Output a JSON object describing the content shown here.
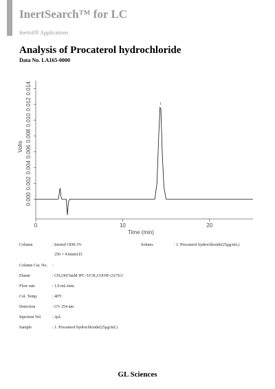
{
  "header": {
    "brand": "InertSearch™ for LC",
    "subtitle": "Inertsil® Applications"
  },
  "title": "Analysis of Procaterol hydrochloride",
  "data_no": "Data No. LA165-0000",
  "chromatogram": {
    "y_label": "Volts",
    "x_label": "Time (min)",
    "peak_label": "1",
    "xlim": [
      0,
      25
    ],
    "ylim": [
      -0.0025,
      0.015
    ],
    "xticks": [
      0,
      10,
      20
    ],
    "yticks": [
      {
        "value": 0,
        "label": "0.000"
      },
      {
        "value": 0.002,
        "label": "0.002"
      },
      {
        "value": 0.004,
        "label": "0.004"
      },
      {
        "value": 0.006,
        "label": "0.006"
      },
      {
        "value": 0.008,
        "label": "0.008"
      },
      {
        "value": 0.01,
        "label": "0.010"
      },
      {
        "value": 0.012,
        "label": "0.012"
      },
      {
        "value": 0.014,
        "label": "0.014"
      }
    ],
    "peak_x": 14.35,
    "trace": {
      "x": [
        0,
        2.6,
        2.72,
        2.8,
        2.9,
        3.0,
        3.5,
        3.58,
        3.65,
        3.75,
        3.9,
        13.7,
        13.95,
        14.15,
        14.3,
        14.4,
        14.55,
        14.75,
        15.0,
        25
      ],
      "y": [
        0,
        0,
        0.0008,
        0.0014,
        0.0004,
        0,
        0,
        -0.0012,
        -0.002,
        -0.0004,
        0,
        0,
        0.002,
        0.008,
        0.0116,
        0.0114,
        0.006,
        0.0015,
        0,
        0
      ]
    }
  },
  "table": {
    "rows": [
      {
        "label": "Column",
        "value": [
          "Inertsil ODS-3V",
          "250 × 4.6mmI.D."
        ]
      },
      {
        "label": "Column Cat. No."
      },
      {
        "label": "Eluent",
        "value": [
          "CH₃OH/5mM IPC-5/CH₃COOH=23/76/1"
        ]
      },
      {
        "label": "Flow rate",
        "value": [
          "1.0 mL/min."
        ]
      },
      {
        "label": "Col. Temp.",
        "value": [
          "40ºC"
        ]
      },
      {
        "label": "Detection",
        "value": [
          "UV 254 nm"
        ]
      },
      {
        "label": "Injection Vol.",
        "value": [
          "2μL"
        ]
      },
      {
        "label": "Sample",
        "value": [
          "1. Procaterol hydrochloride(25μg/mL)"
        ]
      }
    ],
    "solutes": {
      "label": "Solutes",
      "value": "1. Procaterol hydrochloride(25μg/mL)"
    }
  },
  "footer": "GL Sciences"
}
